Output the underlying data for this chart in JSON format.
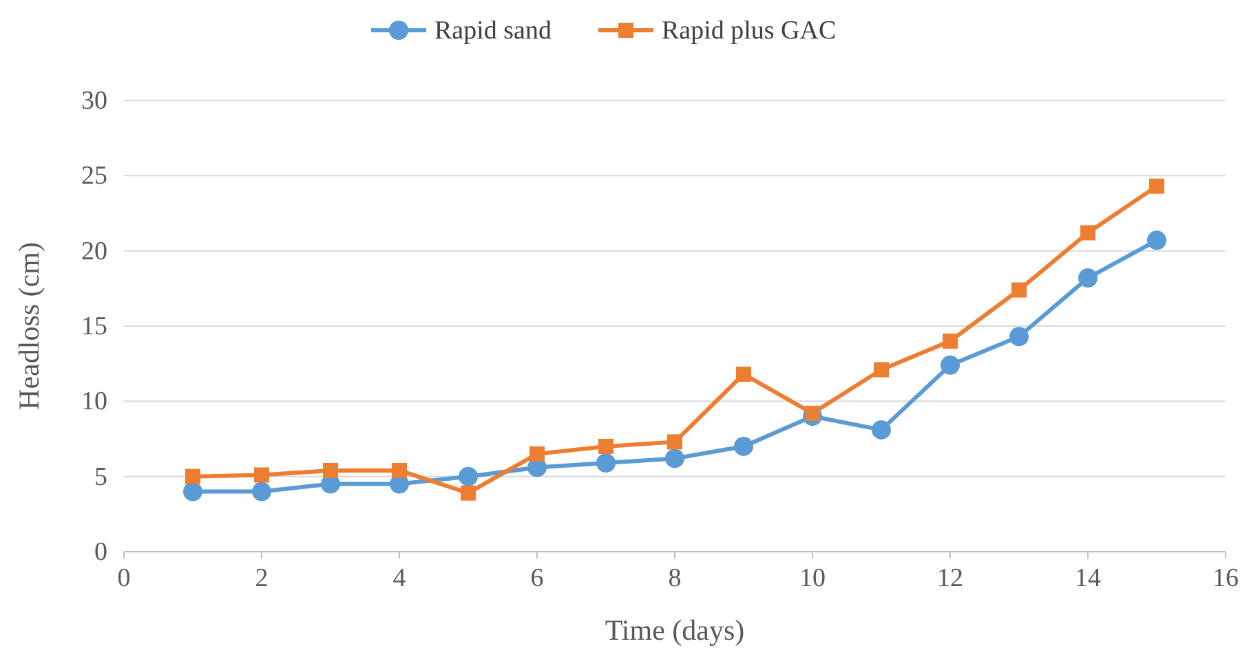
{
  "chart_data": {
    "type": "line",
    "xlabel": "Time (days)",
    "ylabel": "Headloss (cm)",
    "x": [
      1,
      2,
      3,
      4,
      5,
      6,
      7,
      8,
      9,
      10,
      11,
      12,
      13,
      14,
      15
    ],
    "series": [
      {
        "name": "Rapid sand",
        "color": "#5b9bd5",
        "marker": "circle",
        "values": [
          4.0,
          4.0,
          4.5,
          4.5,
          5.0,
          5.6,
          5.9,
          6.2,
          7.0,
          9.0,
          8.1,
          12.4,
          14.3,
          18.2,
          20.7
        ]
      },
      {
        "name": "Rapid plus GAC",
        "color": "#ed7d31",
        "marker": "square",
        "values": [
          5.0,
          5.1,
          5.4,
          5.4,
          3.9,
          6.5,
          7.0,
          7.3,
          11.8,
          9.2,
          12.1,
          14.0,
          17.4,
          21.2,
          24.3
        ]
      }
    ],
    "xlim": [
      0,
      16
    ],
    "xticks": [
      0,
      2,
      4,
      6,
      8,
      10,
      12,
      14,
      16
    ],
    "ylim": [
      0,
      30
    ],
    "yticks": [
      0,
      5,
      10,
      15,
      20,
      25,
      30
    ],
    "grid": "y",
    "legend": "top",
    "line_style": "solid"
  }
}
